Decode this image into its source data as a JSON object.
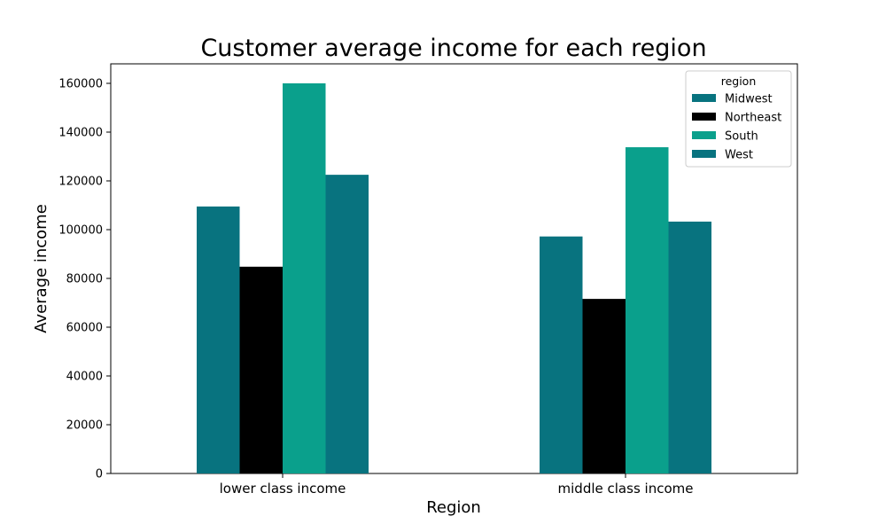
{
  "chart_data": {
    "type": "bar",
    "title": "Customer average income for each region",
    "xlabel": "Region",
    "ylabel": "Average income",
    "categories": [
      "lower class income",
      "middle class income"
    ],
    "series": [
      {
        "name": "Midwest",
        "color": "#08737f",
        "values": [
          109500,
          97200
        ]
      },
      {
        "name": "Northeast",
        "color": "#000000",
        "values": [
          84800,
          71600
        ]
      },
      {
        "name": "South",
        "color": "#0aa08c",
        "values": [
          160000,
          133800
        ]
      },
      {
        "name": "West",
        "color": "#08737f",
        "values": [
          122500,
          103300
        ]
      }
    ],
    "ylim": [
      0,
      168000
    ],
    "yticks": [
      0,
      20000,
      40000,
      60000,
      80000,
      100000,
      120000,
      140000,
      160000
    ],
    "legend": {
      "title": "region",
      "placement": "top-right"
    },
    "grid": false
  }
}
